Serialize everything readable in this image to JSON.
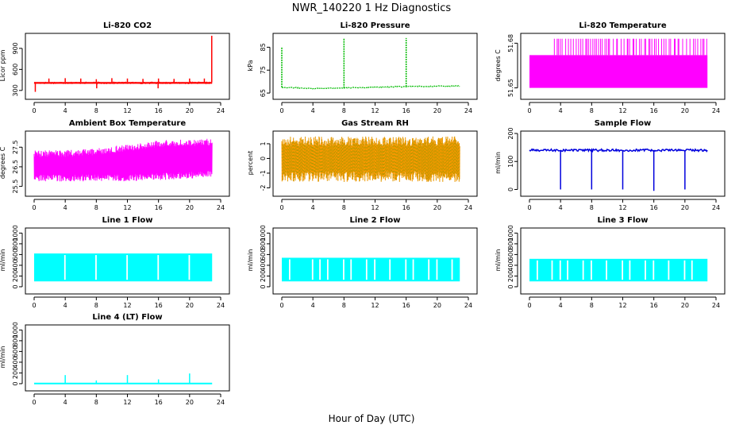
{
  "figure": {
    "title": "NWR_140220  1 Hz Diagnostics",
    "xlabel": "Hour of Day (UTC)"
  },
  "chart_data": [
    {
      "type": "line",
      "title": "Li-820 CO2",
      "ylabel": "Licor ppm",
      "color": "#ff0000",
      "xlim": [
        0,
        24
      ],
      "xticks": [
        0,
        4,
        8,
        12,
        16,
        20,
        24
      ],
      "ylim": [
        230,
        1080
      ],
      "yticks": [
        300,
        600,
        900
      ],
      "x_range": [
        0,
        22.9
      ],
      "band": [
        395,
        420
      ],
      "spikes": [
        [
          1.9,
          470
        ],
        [
          4.0,
          475
        ],
        [
          6.0,
          470
        ],
        [
          8.0,
          460
        ],
        [
          10.0,
          475
        ],
        [
          12.0,
          470
        ],
        [
          14.0,
          465
        ],
        [
          16.0,
          470
        ],
        [
          18.0,
          465
        ],
        [
          20.0,
          470
        ],
        [
          21.9,
          470
        ],
        [
          22.85,
          1080
        ]
      ],
      "dips": [
        [
          0.15,
          280
        ],
        [
          8.05,
          330
        ],
        [
          15.95,
          330
        ]
      ]
    },
    {
      "type": "line",
      "title": "Li-820 Pressure",
      "ylabel": "kPa",
      "color": "#00bb00",
      "xlim": [
        0,
        24
      ],
      "xticks": [
        0,
        4,
        8,
        12,
        16,
        20,
        24
      ],
      "ylim": [
        64,
        90
      ],
      "yticks": [
        65,
        75,
        85
      ],
      "x_range": [
        0,
        22.9
      ],
      "baseline": [
        [
          0,
          67.5
        ],
        [
          4,
          67.0
        ],
        [
          8,
          67.2
        ],
        [
          12,
          67.6
        ],
        [
          16,
          67.8
        ],
        [
          20,
          68.0
        ],
        [
          22.9,
          68.1
        ]
      ],
      "spikes": [
        [
          0.0,
          85
        ],
        [
          8.0,
          89
        ],
        [
          16.0,
          89
        ]
      ]
    },
    {
      "type": "line",
      "title": "Li-820 Temperature",
      "ylabel": "degrees C",
      "color": "#ff00ff",
      "xlim": [
        0,
        24
      ],
      "xticks": [
        0,
        4,
        8,
        12,
        16,
        20,
        24
      ],
      "ylim": [
        51.645,
        51.685
      ],
      "yticks": [
        51.65,
        51.68
      ],
      "yticklabels": [
        "51.65",
        "51.68"
      ],
      "x_range": [
        0,
        22.9
      ],
      "band": [
        51.65,
        51.672
      ],
      "spike_top": 51.683,
      "spike_region": [
        3.2,
        22.9
      ]
    },
    {
      "type": "line",
      "title": "Ambient Box Temperature",
      "ylabel": "degrees C",
      "color": "#ff00ff",
      "xlim": [
        0,
        24
      ],
      "xticks": [
        0,
        4,
        8,
        12,
        16,
        20,
        24
      ],
      "ylim": [
        25.2,
        28.2
      ],
      "yticks": [
        25.5,
        26.5,
        27.5
      ],
      "x_range": [
        0,
        22.9
      ],
      "band_low": [
        [
          0,
          26.0
        ],
        [
          6,
          26.0
        ],
        [
          12,
          26.0
        ],
        [
          18,
          26.1
        ],
        [
          22.9,
          26.2
        ]
      ],
      "band_high": [
        [
          0,
          27.1
        ],
        [
          4,
          27.1
        ],
        [
          8,
          27.2
        ],
        [
          12,
          27.4
        ],
        [
          16,
          27.6
        ],
        [
          22.9,
          27.7
        ]
      ]
    },
    {
      "type": "line",
      "title": "Gas Stream RH",
      "ylabel": "percent",
      "color": "#ff9900",
      "color2": "#999900",
      "xlim": [
        0,
        24
      ],
      "xticks": [
        0,
        4,
        8,
        12,
        16,
        20,
        24
      ],
      "ylim": [
        -2.3,
        1.7
      ],
      "yticks": [
        -2,
        -1,
        0,
        1
      ],
      "x_range": [
        0,
        22.9
      ],
      "band": [
        -1.6,
        1.5
      ]
    },
    {
      "type": "line",
      "title": "Sample Flow",
      "ylabel": "ml/min",
      "color": "#0000dd",
      "xlim": [
        0,
        24
      ],
      "xticks": [
        0,
        4,
        8,
        12,
        16,
        20,
        24
      ],
      "ylim": [
        -10,
        200
      ],
      "yticks": [
        0,
        100,
        200
      ],
      "x_range": [
        0,
        22.9
      ],
      "baseline": [
        [
          0,
          140
        ],
        [
          22.9,
          140
        ]
      ],
      "dips": [
        [
          4.0,
          0
        ],
        [
          8.0,
          0
        ],
        [
          12.0,
          0
        ],
        [
          16.0,
          -5
        ],
        [
          20.0,
          0
        ]
      ]
    },
    {
      "type": "area",
      "title": "Line 1 Flow",
      "ylabel": "ml/min",
      "color": "#00ffff",
      "xlim": [
        0,
        24
      ],
      "xticks": [
        0,
        4,
        8,
        12,
        16,
        20,
        24
      ],
      "ylim": [
        -60,
        1050
      ],
      "yticks": [
        0,
        200,
        400,
        600,
        800,
        1000
      ],
      "x_range": [
        0,
        22.9
      ],
      "band": [
        100,
        620
      ],
      "gaps": [
        3.95,
        7.95,
        11.95,
        15.95,
        19.95
      ]
    },
    {
      "type": "area",
      "title": "Line 2 Flow",
      "ylabel": "ml/min",
      "color": "#00ffff",
      "xlim": [
        0,
        24
      ],
      "xticks": [
        0,
        4,
        8,
        12,
        16,
        20,
        24
      ],
      "ylim": [
        -60,
        1050
      ],
      "yticks": [
        0,
        200,
        400,
        600,
        800,
        1000
      ],
      "x_range": [
        0,
        22.9
      ],
      "band": [
        100,
        540
      ],
      "gaps": [
        1.0,
        3.95,
        4.9,
        5.9,
        7.95,
        8.9,
        10.9,
        11.95,
        13.9,
        15.95,
        16.9,
        18.9,
        19.95,
        21.9
      ]
    },
    {
      "type": "area",
      "title": "Line 3 Flow",
      "ylabel": "ml/min",
      "color": "#00ffff",
      "xlim": [
        0,
        24
      ],
      "xticks": [
        0,
        4,
        8,
        12,
        16,
        20,
        24
      ],
      "ylim": [
        -60,
        1050
      ],
      "yticks": [
        0,
        200,
        400,
        600,
        800,
        1000
      ],
      "x_range": [
        0,
        22.9
      ],
      "band": [
        100,
        520
      ],
      "gaps": [
        1.0,
        2.9,
        3.95,
        4.9,
        6.9,
        7.95,
        9.9,
        11.95,
        12.9,
        14.9,
        15.95,
        17.9,
        19.95,
        20.9
      ]
    },
    {
      "type": "line",
      "title": "Line 4 (LT) Flow",
      "ylabel": "ml/min",
      "color": "#00ffff",
      "xlim": [
        0,
        24
      ],
      "xticks": [
        0,
        4,
        8,
        12,
        16,
        20,
        24
      ],
      "ylim": [
        -60,
        1050
      ],
      "yticks": [
        0,
        200,
        400,
        600,
        800,
        1000
      ],
      "x_range": [
        0,
        22.9
      ],
      "baseline": [
        [
          0,
          2
        ],
        [
          22.9,
          2
        ]
      ],
      "spikes": [
        [
          4.0,
          160
        ],
        [
          8.0,
          60
        ],
        [
          12.0,
          160
        ],
        [
          16.0,
          80
        ],
        [
          20.0,
          190
        ]
      ]
    }
  ]
}
